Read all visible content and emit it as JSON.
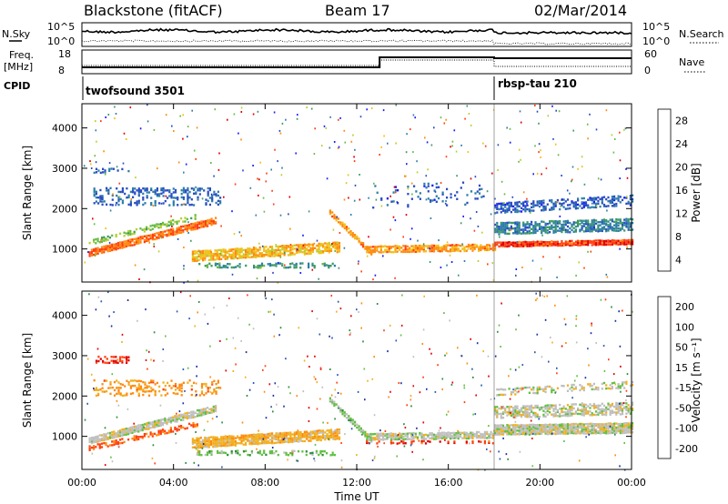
{
  "header": {
    "station": "Blackstone (fitACF)",
    "beam": "Beam 17",
    "date": "02/Mar/2014"
  },
  "status_panels": {
    "nsky_label": "N.Sky",
    "nsearch_label": "N.Search",
    "count_ticks": [
      "10^5",
      "10^0"
    ],
    "freq_label_1": "Freq.",
    "freq_label_2": "[MHz]",
    "freq_ticks": [
      "18",
      "8"
    ],
    "nave_label": "Nave",
    "nave_ticks": [
      "60",
      "0"
    ],
    "cpid_label": "CPID",
    "cpid_segments": [
      {
        "name": "twofsound 3501",
        "start_hour": 0,
        "end_hour": 18
      },
      {
        "name": "rbsp-tau 210",
        "start_hour": 18,
        "end_hour": 24
      }
    ],
    "freq_change_hour": 13,
    "cpid_change_hour": 18
  },
  "colors": {
    "power": [
      "#1a1aff",
      "#2a4cc4",
      "#2e7fa8",
      "#3c9a62",
      "#66bb44",
      "#b8d030",
      "#f0c018",
      "#ff8a10",
      "#ff4010",
      "#e00000"
    ],
    "velocity": [
      "#e00000",
      "#ff4010",
      "#ff8a10",
      "#f0b020",
      "#bfbfbf",
      "#60c040",
      "#2e8c3c",
      "#2a5ab0",
      "#1a30a0"
    ],
    "ground_scatter": "#bfbfbf"
  },
  "chart_data": [
    {
      "type": "heatmap",
      "parameter": "Power",
      "xlabel": "",
      "ylabel": "Slant Range [km]",
      "xlim_hours": [
        0,
        24
      ],
      "ylim_km": [
        180,
        4600
      ],
      "x_ticks": [
        "00:00",
        "04:00",
        "08:00",
        "12:00",
        "16:00",
        "20:00",
        "00:00"
      ],
      "y_ticks": [
        1000,
        2000,
        3000,
        4000
      ],
      "colorbar_label": "Power [dB]",
      "colorbar_ticks": [
        "28",
        "24",
        "20",
        "16",
        "12",
        "8",
        "4"
      ],
      "colorbar_range": [
        0,
        30
      ],
      "scatter_bands": [
        {
          "t0": 0.3,
          "t1": 5.8,
          "r0a": 900,
          "r0b": 1700,
          "width": 180,
          "value": 24,
          "density": 0.9
        },
        {
          "t0": 0.3,
          "t1": 5.0,
          "r0a": 1150,
          "r0b": 1800,
          "width": 120,
          "value": 14,
          "density": 0.5
        },
        {
          "t0": 4.8,
          "t1": 11.2,
          "r0a": 830,
          "r0b": 1050,
          "width": 280,
          "value": 20,
          "density": 0.85
        },
        {
          "t0": 10.8,
          "t1": 12.6,
          "r0a": 1900,
          "r0b": 900,
          "width": 120,
          "value": 22,
          "density": 0.85
        },
        {
          "t0": 12.4,
          "t1": 18.0,
          "r0a": 1000,
          "r0b": 1050,
          "width": 200,
          "value": 22,
          "density": 0.8
        },
        {
          "t0": 18.0,
          "t1": 24.0,
          "r0a": 1120,
          "r0b": 1180,
          "width": 150,
          "value": 26,
          "density": 0.95
        },
        {
          "t0": 18.0,
          "t1": 24.0,
          "r0a": 1500,
          "r0b": 1600,
          "width": 300,
          "value": 8,
          "density": 0.7
        },
        {
          "t0": 18.0,
          "t1": 24.0,
          "r0a": 2000,
          "r0b": 2200,
          "width": 250,
          "value": 5,
          "density": 0.5
        },
        {
          "t0": 0.5,
          "t1": 6.0,
          "r0a": 2300,
          "r0b": 2300,
          "width": 450,
          "value": 6,
          "density": 0.3
        },
        {
          "t0": 0.5,
          "t1": 2.0,
          "r0a": 2950,
          "r0b": 2950,
          "width": 150,
          "value": 6,
          "density": 0.35
        },
        {
          "t0": 12.5,
          "t1": 17.5,
          "r0a": 2300,
          "r0b": 2400,
          "width": 600,
          "value": 5,
          "density": 0.1
        },
        {
          "t0": 5.0,
          "t1": 11.0,
          "r0a": 600,
          "r0b": 600,
          "width": 150,
          "value": 10,
          "density": 0.35
        }
      ]
    },
    {
      "type": "heatmap",
      "parameter": "Velocity",
      "xlabel": "Time UT",
      "ylabel": "Slant Range [km]",
      "xlim_hours": [
        0,
        24
      ],
      "ylim_km": [
        180,
        4600
      ],
      "x_ticks": [
        "00:00",
        "04:00",
        "08:00",
        "12:00",
        "16:00",
        "20:00",
        "00:00"
      ],
      "y_ticks": [
        1000,
        2000,
        3000,
        4000
      ],
      "colorbar_label": "Velocity [m s⁻¹]",
      "colorbar_ticks": [
        "200",
        "100",
        "50",
        "15",
        "-15",
        "-50",
        "-100",
        "-200"
      ],
      "colorbar_range": [
        -250,
        250
      ],
      "scatter_bands": [
        {
          "t0": 0.3,
          "t1": 5.8,
          "r0a": 900,
          "r0b": 1700,
          "width": 200,
          "value": 0,
          "density": 0.9
        },
        {
          "t0": 0.3,
          "t1": 5.0,
          "r0a": 700,
          "r0b": 1300,
          "width": 120,
          "value": -150,
          "density": 0.5
        },
        {
          "t0": 4.8,
          "t1": 11.2,
          "r0a": 830,
          "r0b": 1050,
          "width": 260,
          "value": -60,
          "density": 0.85
        },
        {
          "t0": 10.8,
          "t1": 12.6,
          "r0a": 1900,
          "r0b": 900,
          "width": 120,
          "value": 40,
          "density": 0.85
        },
        {
          "t0": 12.4,
          "t1": 18.0,
          "r0a": 1000,
          "r0b": 1050,
          "width": 200,
          "value": 0,
          "density": 0.8
        },
        {
          "t0": 12.4,
          "t1": 18.0,
          "r0a": 850,
          "r0b": 850,
          "width": 80,
          "value": -180,
          "density": 0.3
        },
        {
          "t0": 18.0,
          "t1": 24.0,
          "r0a": 1150,
          "r0b": 1200,
          "width": 250,
          "value": 0,
          "density": 0.95
        },
        {
          "t0": 18.0,
          "t1": 24.0,
          "r0a": 1600,
          "r0b": 1700,
          "width": 320,
          "value": 0,
          "density": 0.6
        },
        {
          "t0": 18.0,
          "t1": 24.0,
          "r0a": 2100,
          "r0b": 2300,
          "width": 200,
          "value": 0,
          "density": 0.35
        },
        {
          "t0": 0.5,
          "t1": 2.0,
          "r0a": 2900,
          "r0b": 2900,
          "width": 180,
          "value": -200,
          "density": 0.4
        },
        {
          "t0": 0.5,
          "t1": 6.0,
          "r0a": 2200,
          "r0b": 2200,
          "width": 400,
          "value": -100,
          "density": 0.25
        },
        {
          "t0": 5.0,
          "t1": 11.0,
          "r0a": 600,
          "r0b": 600,
          "width": 150,
          "value": 60,
          "density": 0.3
        }
      ]
    }
  ]
}
